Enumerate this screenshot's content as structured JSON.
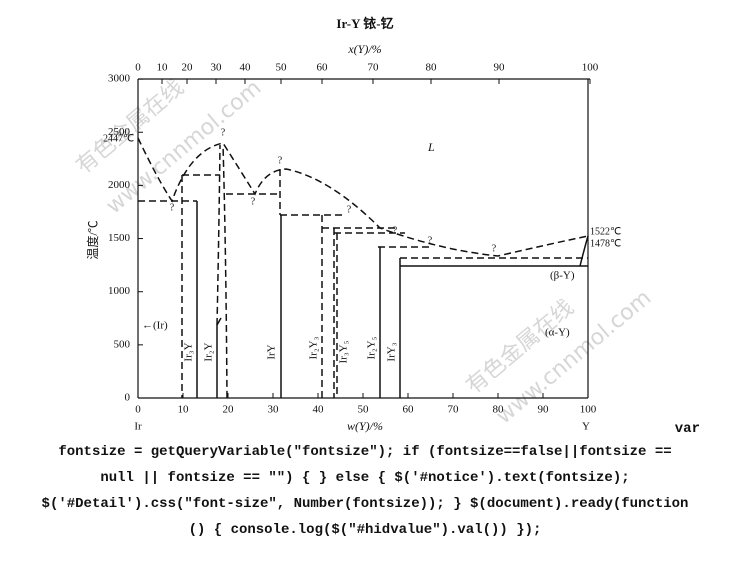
{
  "diagram": {
    "title": "Ir-Y  铱-钇",
    "top_axis": {
      "label": "x(Y)/%",
      "ticks": [
        0,
        10,
        20,
        30,
        40,
        50,
        60,
        70,
        80,
        90,
        100
      ]
    },
    "bottom_axis": {
      "label": "w(Y)/%",
      "ticks": [
        0,
        10,
        20,
        30,
        40,
        50,
        60,
        70,
        80,
        90,
        100
      ],
      "left_end": "Ir",
      "right_end": "Y"
    },
    "left_axis": {
      "label": "温度/℃",
      "ticks": [
        0,
        500,
        1000,
        1500,
        2000,
        2500,
        3000
      ]
    },
    "annotations": [
      "2447℃",
      "1522℃",
      "1478℃",
      "L",
      "(β-Y)",
      "(α-Y)",
      "←(Ir)"
    ],
    "phases": [
      "Ir₃Y",
      "Ir₂Y",
      "IrY",
      "Ir₂Y₃",
      "Ir₃Y₅",
      "Ir₂Y₅",
      "IrY₃"
    ],
    "question_mark": "?",
    "watermarks": [
      "有色金属在线",
      "www.cnnmol.com",
      "有色金属在线",
      "www.cnnmol.com"
    ]
  },
  "code_text": [
    "var",
    "fontsize = getQueryVariable(\"fontsize\"); if (fontsize==false||fontsize ==",
    "null || fontsize == \"\") { } else { $('#notice').text(fontsize);",
    "$('#Detail').css(\"font-size\", Number(fontsize)); } $(document).ready(function",
    "() { console.log($(\"#hidvalue\").val()) });"
  ]
}
